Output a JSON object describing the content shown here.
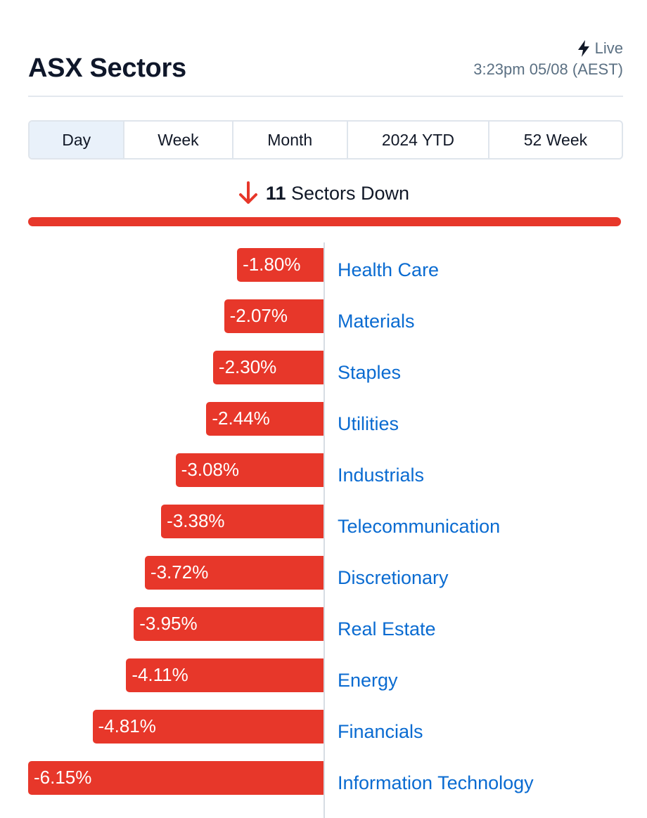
{
  "header": {
    "title": "ASX Sectors",
    "live_label": "Live",
    "timestamp": "3:23pm 05/08 (AEST)"
  },
  "tabs": [
    {
      "label": "Day",
      "active": true
    },
    {
      "label": "Week",
      "active": false
    },
    {
      "label": "Month",
      "active": false
    },
    {
      "label": "2024 YTD",
      "active": false
    },
    {
      "label": "52 Week",
      "active": false
    }
  ],
  "summary": {
    "count": "11",
    "text": "Sectors Down"
  },
  "colors": {
    "negative": "#e7372a",
    "link": "#0a6bd1",
    "active_tab": "#e9f1fa"
  },
  "chart_data": {
    "type": "bar",
    "orientation": "horizontal",
    "xlim": [
      -6.15,
      0
    ],
    "categories": [
      "Health Care",
      "Materials",
      "Staples",
      "Utilities",
      "Industrials",
      "Telecommunication",
      "Discretionary",
      "Real Estate",
      "Energy",
      "Financials",
      "Information Technology"
    ],
    "values": [
      -1.8,
      -2.07,
      -2.3,
      -2.44,
      -3.08,
      -3.38,
      -3.72,
      -3.95,
      -4.11,
      -4.81,
      -6.15
    ],
    "value_labels": [
      "-1.80%",
      "-2.07%",
      "-2.30%",
      "-2.44%",
      "-3.08%",
      "-3.38%",
      "-3.72%",
      "-3.95%",
      "-4.11%",
      "-4.81%",
      "-6.15%"
    ]
  }
}
